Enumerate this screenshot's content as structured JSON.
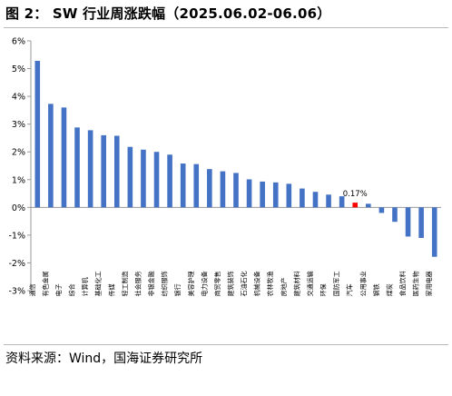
{
  "figure": {
    "title": "图 2： SW 行业周涨跌幅（2025.06.02-06.06）",
    "source": "资料来源：Wind，国海证券研究所"
  },
  "colors": {
    "bar": "#4472c4",
    "highlight": "#ff0000",
    "axis": "#999999",
    "rule": "#b9b9b9"
  },
  "chart_data": {
    "type": "bar",
    "title": "",
    "xlabel": "",
    "ylabel": "",
    "ylim": [
      -3,
      6
    ],
    "yticks": [
      "-3%",
      "-2%",
      "-1%",
      "0%",
      "1%",
      "2%",
      "3%",
      "4%",
      "5%",
      "6%"
    ],
    "grid": false,
    "legend": "none",
    "categories": [
      "通信",
      "有色金属",
      "电子",
      "综合",
      "计算机",
      "基础化工",
      "传媒",
      "轻工制造",
      "社会服务",
      "非银金融",
      "纺织服饰",
      "银行",
      "美容护理",
      "电力设备",
      "商贸零售",
      "建筑装饰",
      "石油石化",
      "机械设备",
      "农林牧渔",
      "房地产",
      "建筑材料",
      "交通运输",
      "环保",
      "国防军工",
      "汽车",
      "公用事业",
      "钢铁",
      "煤炭",
      "食品饮料",
      "医药生物",
      "家用电器"
    ],
    "values": [
      5.28,
      3.73,
      3.6,
      2.88,
      2.78,
      2.6,
      2.58,
      2.18,
      2.08,
      2.0,
      1.9,
      1.58,
      1.56,
      1.38,
      1.3,
      1.24,
      1.01,
      0.93,
      0.9,
      0.85,
      0.68,
      0.56,
      0.46,
      0.4,
      0.17,
      0.13,
      -0.2,
      -0.52,
      -1.05,
      -1.1,
      -1.78
    ],
    "highlight_category": "汽车",
    "annotations": [
      {
        "category": "汽车",
        "text": "0.17%"
      }
    ]
  }
}
